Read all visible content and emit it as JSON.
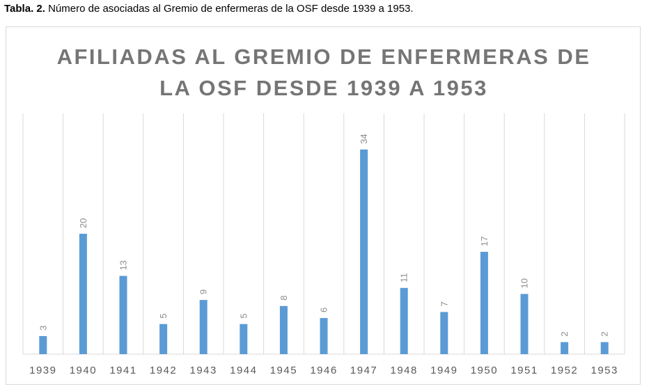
{
  "caption": {
    "label": "Tabla. 2.",
    "text": "Número de asociadas al Gremio de enfermeras de la OSF desde 1939 a 1953."
  },
  "chart_data": {
    "type": "bar",
    "title_line1": "AFILIADAS AL GREMIO DE ENFERMERAS DE",
    "title_line2": "LA OSF DESDE 1939 A 1953",
    "categories": [
      "1939",
      "1940",
      "1941",
      "1942",
      "1943",
      "1944",
      "1945",
      "1946",
      "1947",
      "1948",
      "1949",
      "1950",
      "1951",
      "1952",
      "1953"
    ],
    "values": [
      3,
      20,
      13,
      5,
      9,
      5,
      8,
      6,
      34,
      11,
      7,
      17,
      10,
      2,
      2
    ],
    "ylim": [
      0,
      40
    ],
    "grid": "vertical",
    "bar_color": "#5b9bd5",
    "label_color": "#8c8c8c",
    "grid_color": "#d9d9d9"
  }
}
